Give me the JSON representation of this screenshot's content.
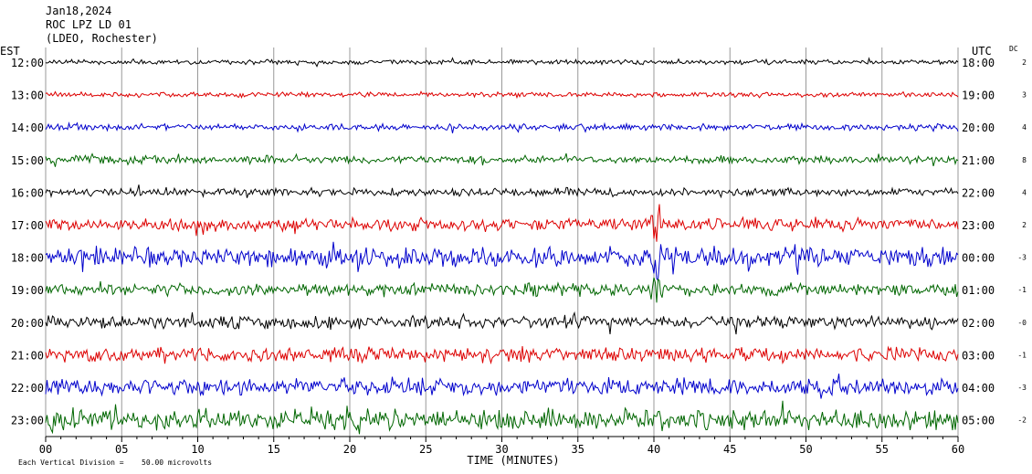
{
  "header": {
    "date": "Jan18,2024",
    "station": "ROC LPZ LD 01",
    "network": "(LDEO, Rochester)"
  },
  "labels": {
    "left_zone": "EST",
    "right_zone": "UTC",
    "dc": "DC",
    "xlabel": "TIME (MINUTES)",
    "footer": "Each Vertical Division =",
    "footer_value": "50.00 microvolts"
  },
  "colors": {
    "black": "#000000",
    "red": "#dd0000",
    "blue": "#0000cc",
    "green": "#006600",
    "grid": "#999999"
  },
  "chart_data": {
    "type": "line",
    "xlim": [
      0,
      60
    ],
    "x_ticks": [
      "00",
      "05",
      "10",
      "15",
      "20",
      "25",
      "30",
      "35",
      "40",
      "45",
      "50",
      "55",
      "60"
    ],
    "rows": [
      {
        "est": "12:00",
        "utc": "18:00",
        "dc": "2",
        "color": "black",
        "amp": 3
      },
      {
        "est": "13:00",
        "utc": "19:00",
        "dc": "3",
        "color": "red",
        "amp": 3
      },
      {
        "est": "14:00",
        "utc": "20:00",
        "dc": "4",
        "color": "blue",
        "amp": 4
      },
      {
        "est": "15:00",
        "utc": "21:00",
        "dc": "8",
        "color": "green",
        "amp": 5
      },
      {
        "est": "16:00",
        "utc": "22:00",
        "dc": "4",
        "color": "black",
        "amp": 5
      },
      {
        "est": "17:00",
        "utc": "23:00",
        "dc": "2",
        "color": "red",
        "amp": 8
      },
      {
        "est": "18:00",
        "utc": "00:00",
        "dc": "-3",
        "color": "blue",
        "amp": 12
      },
      {
        "est": "19:00",
        "utc": "01:00",
        "dc": "-1",
        "color": "green",
        "amp": 8
      },
      {
        "est": "20:00",
        "utc": "02:00",
        "dc": "-0",
        "color": "black",
        "amp": 8
      },
      {
        "est": "21:00",
        "utc": "03:00",
        "dc": "-1",
        "color": "red",
        "amp": 9
      },
      {
        "est": "22:00",
        "utc": "04:00",
        "dc": "-3",
        "color": "blue",
        "amp": 11
      },
      {
        "est": "23:00",
        "utc": "05:00",
        "dc": "-2",
        "color": "green",
        "amp": 13
      }
    ]
  }
}
